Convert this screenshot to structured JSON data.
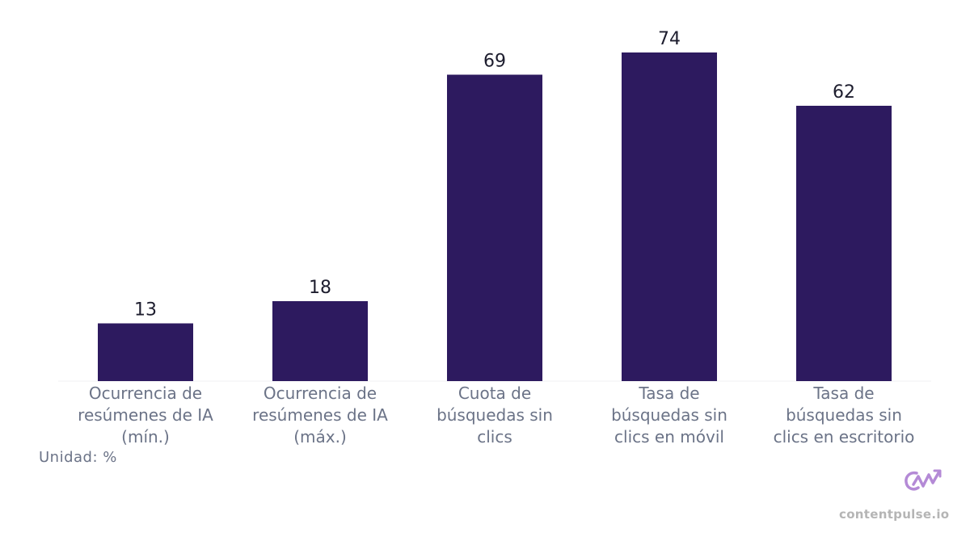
{
  "chart_data": {
    "type": "bar",
    "categories": [
      [
        "Ocurrencia de",
        "resúmenes de IA",
        "(mín.)"
      ],
      [
        "Ocurrencia de",
        "resúmenes de IA",
        "(máx.)"
      ],
      [
        "Cuota de",
        "búsquedas sin",
        "clics"
      ],
      [
        "Tasa de",
        "búsquedas sin",
        "clics en móvil"
      ],
      [
        "Tasa de",
        "búsquedas sin",
        "clics en escritorio"
      ]
    ],
    "values": [
      13,
      18,
      69,
      74,
      62
    ],
    "ylim": [
      0,
      80
    ],
    "grid": false,
    "legend": "none",
    "bar_color": "#2d1a5f"
  },
  "unit_label": "Unidad: %",
  "brand": {
    "name": "contentpulse.io",
    "logo_color": "#b48ad6"
  }
}
